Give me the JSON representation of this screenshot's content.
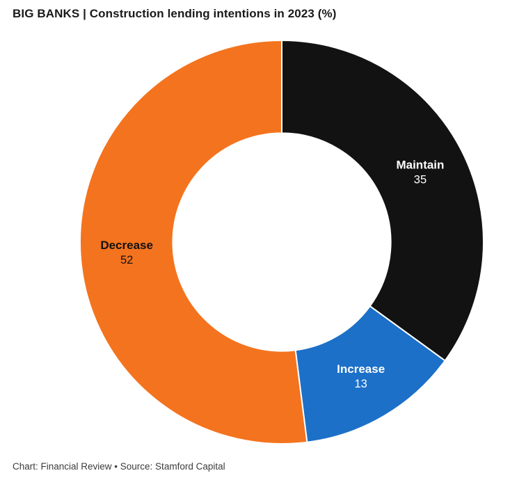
{
  "header": {
    "title": "BIG BANKS | Construction lending intentions in 2023 (%)"
  },
  "footer": {
    "text": "Chart: Financial Review • Source: Stamford Capital"
  },
  "chart_data": {
    "type": "pie",
    "subtype": "donut",
    "title": "BIG BANKS | Construction lending intentions in 2023 (%)",
    "categories": [
      "Maintain",
      "Increase",
      "Decrease"
    ],
    "values": [
      35,
      13,
      52
    ],
    "unit": "%",
    "colors": [
      "#121212",
      "#1c70c8",
      "#f4731e"
    ],
    "label_colors": [
      "#ffffff",
      "#ffffff",
      "#121212"
    ],
    "start_angle_deg": 0,
    "direction": "clockwise",
    "inner_radius_ratio": 0.54,
    "legend_position": "none",
    "source": "Chart: Financial Review • Source: Stamford Capital"
  }
}
